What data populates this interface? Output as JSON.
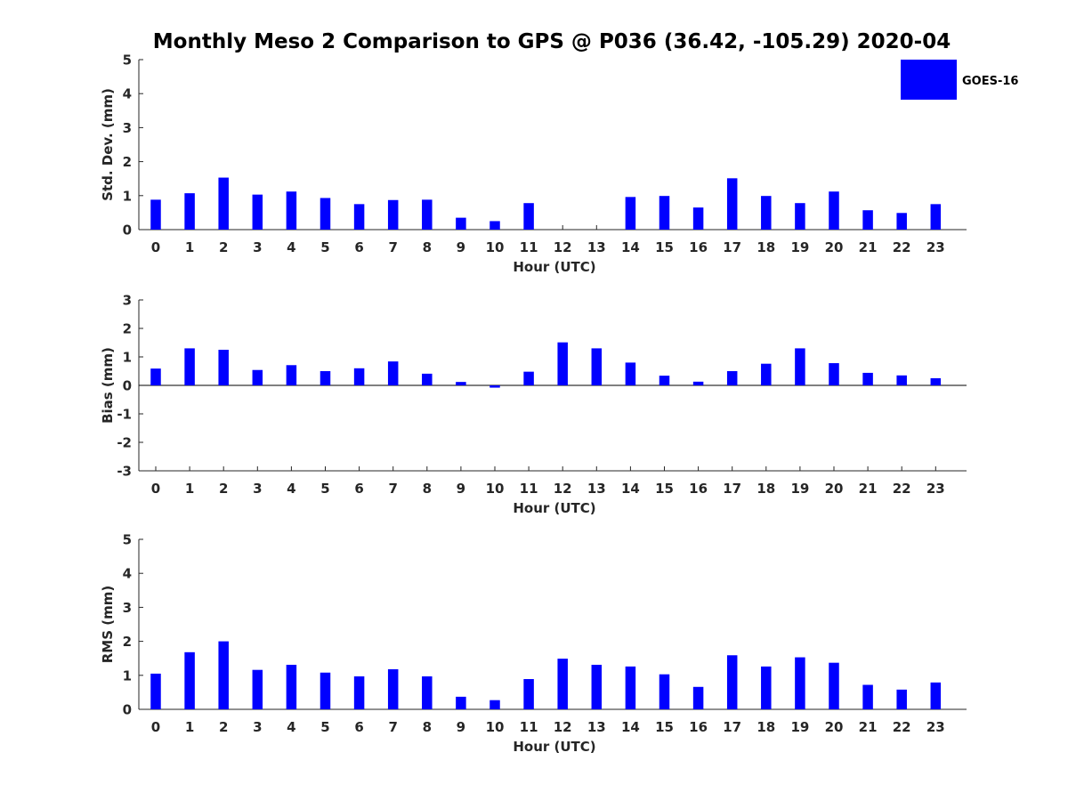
{
  "chart_data": {
    "type": "bar",
    "title": "Monthly Meso 2 Comparison to GPS @ P036 (36.42, -105.29) 2020-04",
    "color": "#0000ff",
    "legend": {
      "label": "GOES-16",
      "placement": "top-right"
    },
    "grid": false,
    "xlabel": "Hour (UTC)",
    "categories": [
      "0",
      "1",
      "2",
      "3",
      "4",
      "5",
      "6",
      "7",
      "8",
      "9",
      "10",
      "11",
      "12",
      "13",
      "14",
      "15",
      "16",
      "17",
      "18",
      "19",
      "20",
      "21",
      "22",
      "23"
    ],
    "panels": [
      {
        "ylabel": "Std. Dev. (mm)",
        "ylim": [
          0,
          5
        ],
        "yticks": [
          "0",
          "1",
          "2",
          "3",
          "4",
          "5"
        ],
        "values": [
          0.88,
          1.07,
          1.53,
          1.03,
          1.12,
          0.93,
          0.75,
          0.87,
          0.88,
          0.35,
          0.25,
          0.78,
          0.0,
          0.0,
          0.96,
          0.99,
          0.65,
          1.51,
          0.99,
          0.78,
          1.12,
          0.57,
          0.49,
          0.75
        ]
      },
      {
        "ylabel": "Bias (mm)",
        "ylim": [
          -3,
          3
        ],
        "yticks": [
          "-3",
          "-2",
          "-1",
          "0",
          "1",
          "2",
          "3"
        ],
        "values": [
          0.59,
          1.3,
          1.25,
          0.54,
          0.71,
          0.5,
          0.6,
          0.84,
          0.41,
          0.12,
          -0.08,
          0.48,
          1.51,
          1.3,
          0.8,
          0.34,
          0.13,
          0.5,
          0.76,
          1.3,
          0.78,
          0.44,
          0.35,
          0.25
        ]
      },
      {
        "ylabel": "RMS (mm)",
        "ylim": [
          0,
          5
        ],
        "yticks": [
          "0",
          "1",
          "2",
          "3",
          "4",
          "5"
        ],
        "values": [
          1.05,
          1.68,
          2.0,
          1.16,
          1.31,
          1.08,
          0.97,
          1.18,
          0.97,
          0.37,
          0.27,
          0.89,
          1.49,
          1.31,
          1.26,
          1.03,
          0.66,
          1.59,
          1.26,
          1.53,
          1.37,
          0.72,
          0.58,
          0.79
        ]
      }
    ]
  }
}
